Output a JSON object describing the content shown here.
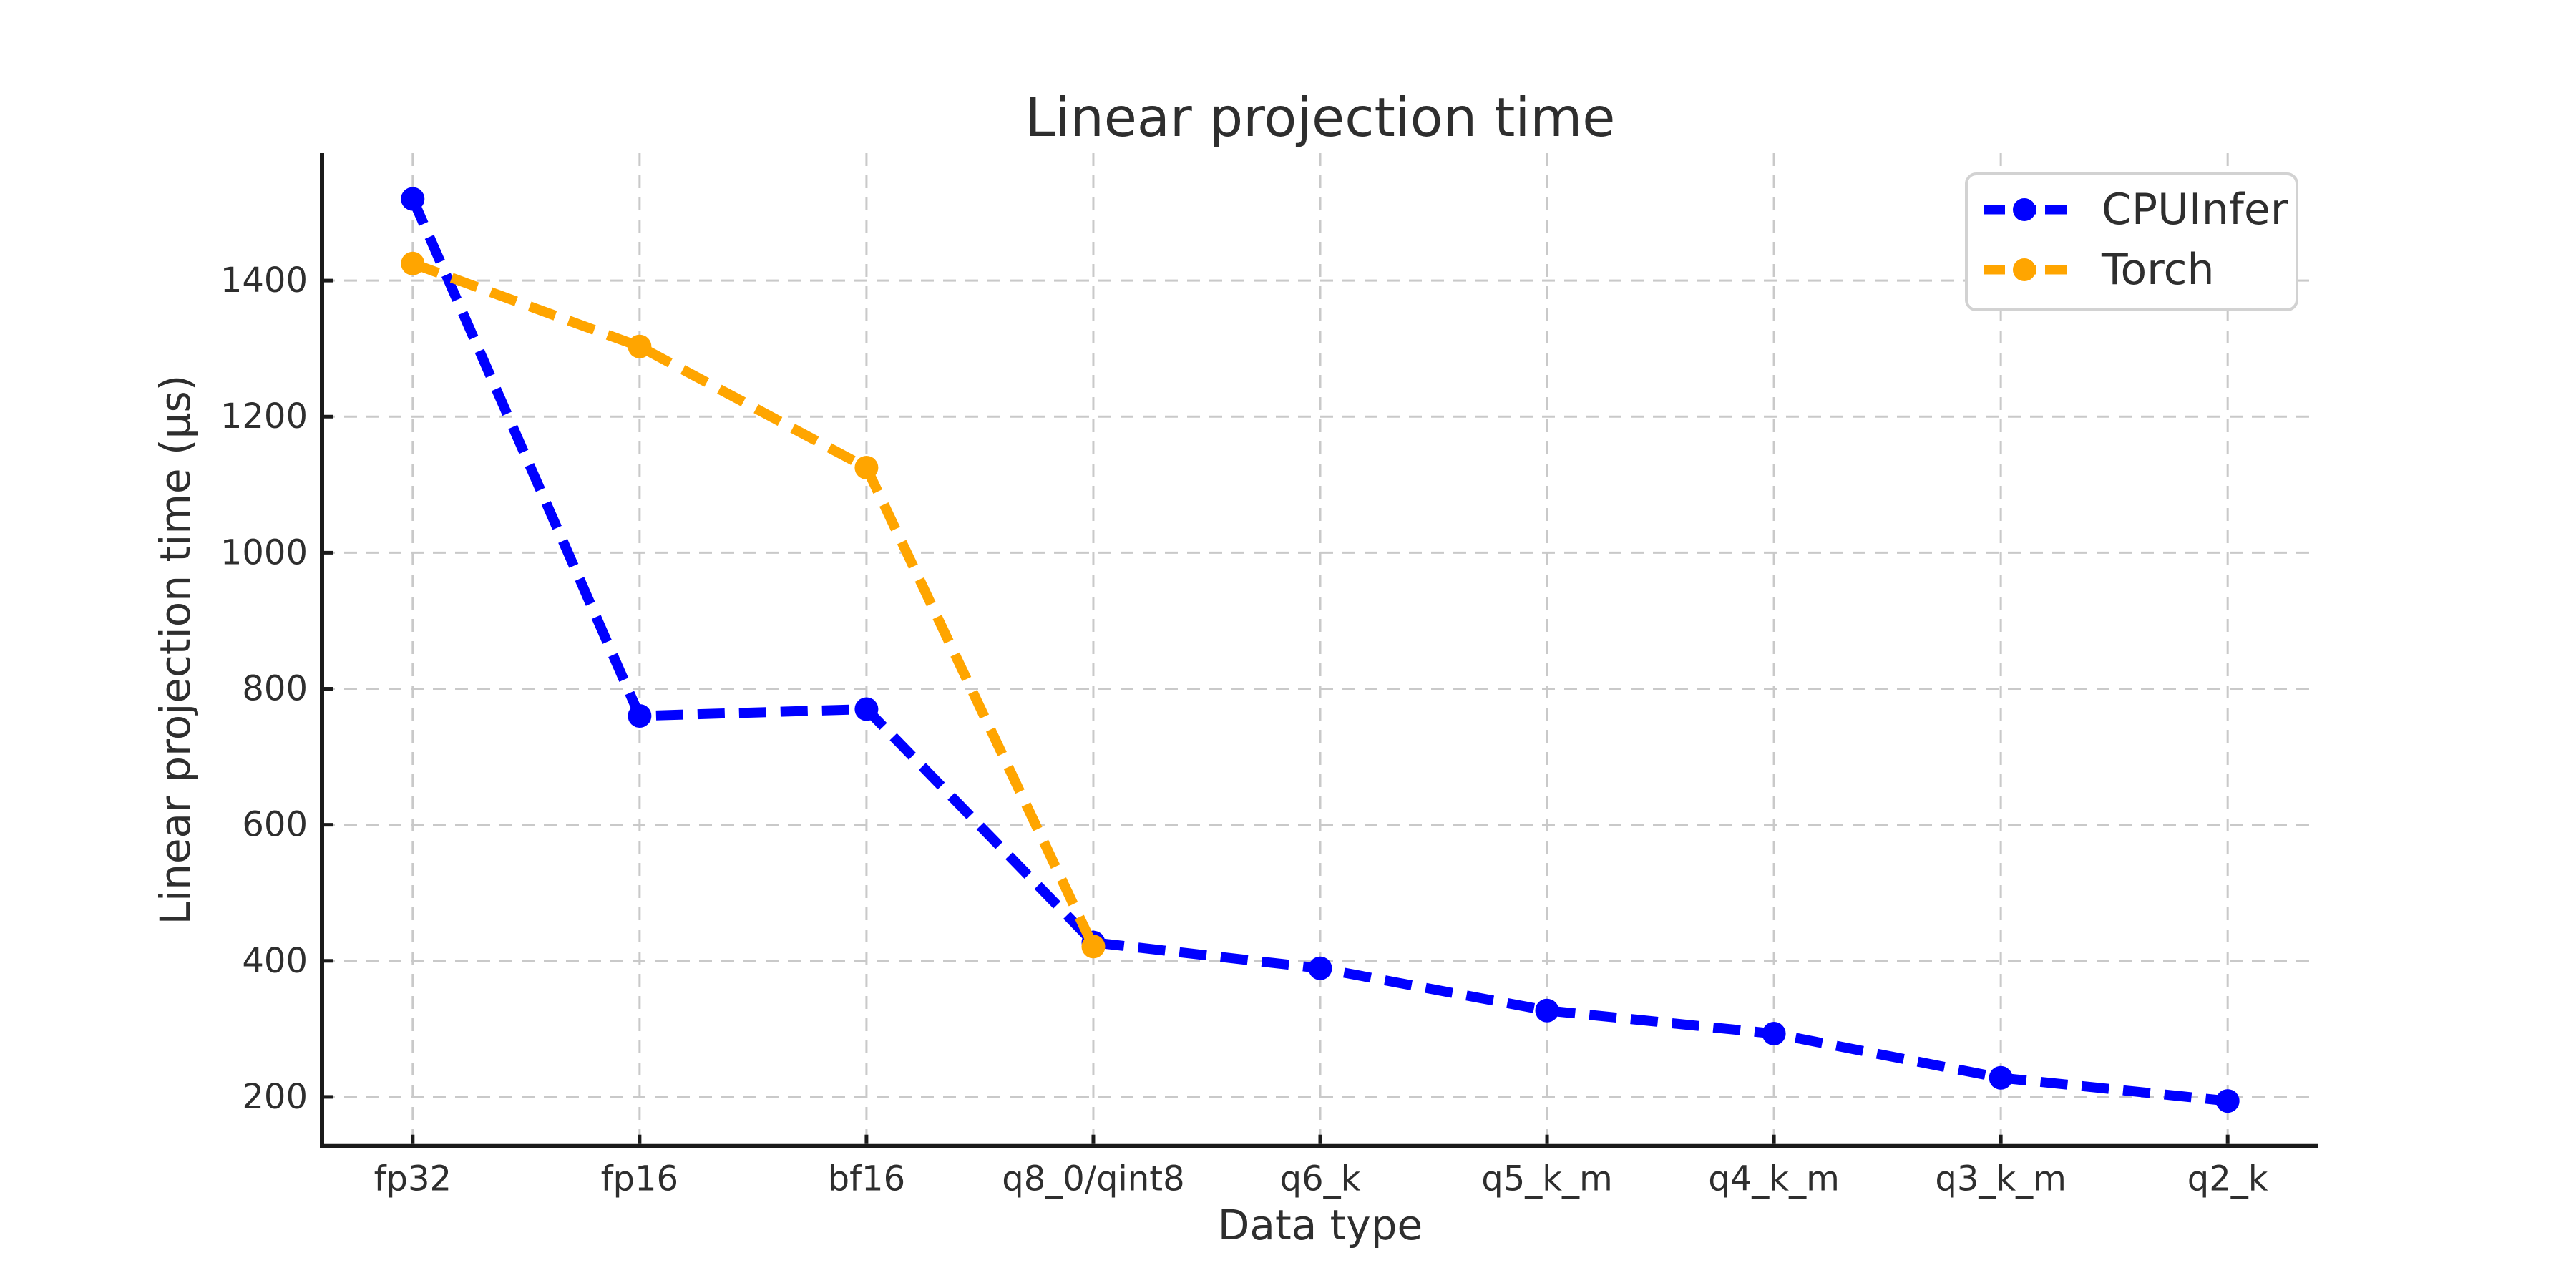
{
  "page": {
    "background": "#ffffff"
  },
  "chart_data": {
    "type": "line",
    "title": "Linear projection time",
    "xlabel": "Data type",
    "ylabel": "Linear projection time (μs)",
    "categories": [
      "fp32",
      "fp16",
      "bf16",
      "q8_0/qint8",
      "q6_k",
      "q5_k_m",
      "q4_k_m",
      "q3_k_m",
      "q2_k"
    ],
    "series": [
      {
        "name": "CPUInfer",
        "color": "#0000ff",
        "values": [
          1520,
          760,
          770,
          427,
          389,
          327,
          293,
          228,
          194
        ]
      },
      {
        "name": "Torch",
        "color": "#ffa500",
        "values": [
          1425,
          1303,
          1125,
          421
        ]
      }
    ],
    "yticks": [
      200,
      400,
      600,
      800,
      1000,
      1200,
      1400
    ],
    "ylim": [
      127.65,
      1587.35
    ],
    "grid": true,
    "grid_style": "dashed",
    "line_style": "dashed",
    "marker": "circle",
    "legend_position": "upper right",
    "text_color": "#2e2e2e",
    "grid_color": "#c9c9c9",
    "spine_color": "#1a1a1a",
    "legend_border_color": "#d2d2d2"
  }
}
